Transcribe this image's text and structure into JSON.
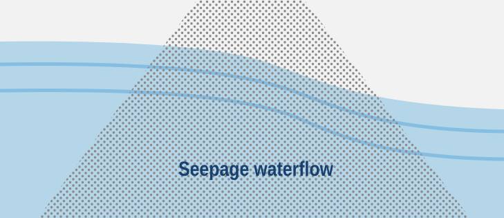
{
  "label": "Seepage waterflow"
}
